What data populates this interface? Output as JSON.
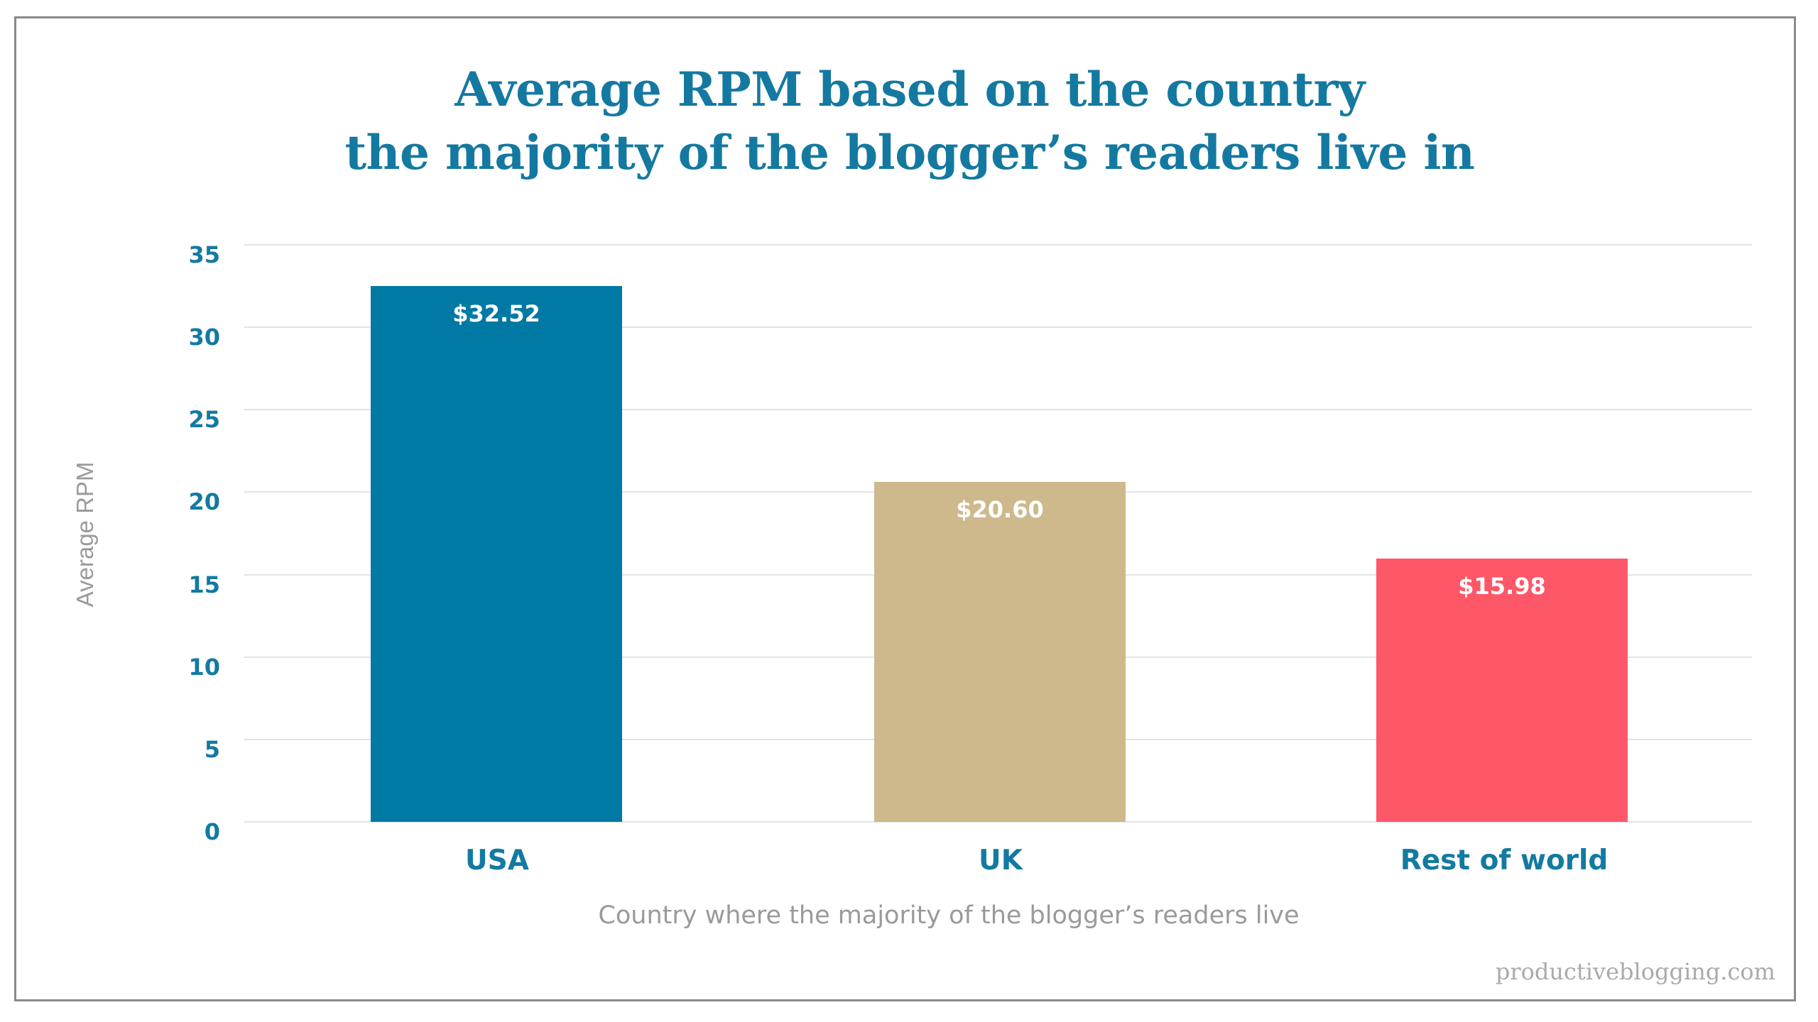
{
  "chart_data": {
    "type": "bar",
    "title": "Average RPM based on the country the majority of the blogger’s readers live in",
    "title_lines": [
      "Average RPM based on the country",
      "the majority of the blogger’s readers live in"
    ],
    "categories": [
      "USA",
      "UK",
      "Rest of world"
    ],
    "values": [
      32.52,
      20.6,
      15.98
    ],
    "value_labels": [
      "$32.52",
      "$20.60",
      "$15.98"
    ],
    "colors": [
      "#0079a4",
      "#cdb98c",
      "#fe5767"
    ],
    "xlabel": "Country where the majority of the blogger’s readers live",
    "ylabel": "Average RPM",
    "ylim": [
      0,
      35
    ],
    "yticks": [
      "0",
      "5",
      "10",
      "15",
      "20",
      "25",
      "30",
      "35"
    ],
    "grid": true,
    "legend": "none"
  },
  "colors": {
    "title": "#1479a0",
    "tick": "#137aa1",
    "axis_title": "#9a9a9a",
    "grid": "#dfe3e7",
    "border": "#8a8a8a",
    "watermark": "#aaaaaa"
  },
  "watermark": "productiveblogging.com"
}
